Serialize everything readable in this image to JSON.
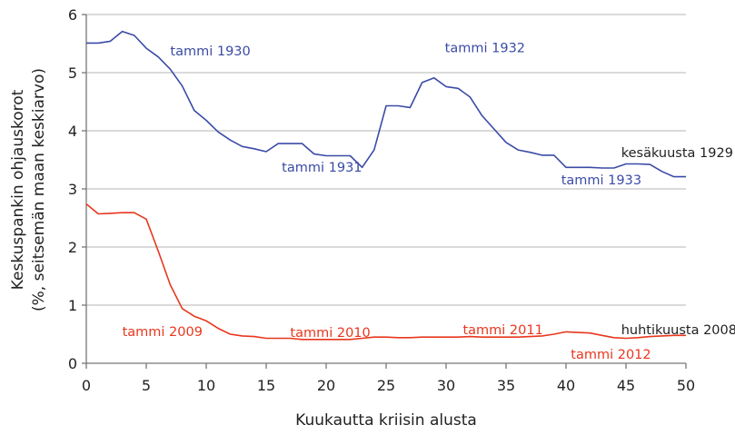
{
  "chart_data": {
    "type": "line",
    "title": "",
    "xlabel": "Kuukautta kriisin alusta",
    "ylabel_lines": [
      "Keskuspankin ohjauskorot",
      "(%, seitsemän maan keskiarvo)"
    ],
    "xlim": [
      0,
      50
    ],
    "ylim": [
      0,
      6
    ],
    "xticks": [
      0,
      5,
      10,
      15,
      20,
      25,
      30,
      35,
      40,
      45,
      50
    ],
    "yticks": [
      0,
      1,
      2,
      3,
      4,
      5,
      6
    ],
    "grid": "horizontal",
    "series": [
      {
        "name": "kesäkuusta 1929",
        "color": "#3b4ba6",
        "x": [
          0,
          1,
          2,
          3,
          4,
          5,
          6,
          7,
          8,
          9,
          10,
          11,
          12,
          13,
          14,
          15,
          16,
          17,
          18,
          19,
          20,
          21,
          22,
          23,
          24,
          25,
          26,
          27,
          28,
          29,
          30,
          31,
          32,
          33,
          34,
          35,
          36,
          37,
          38,
          39,
          40,
          41,
          42,
          43,
          44,
          45,
          46,
          47,
          48,
          49,
          50
        ],
        "values": [
          5.51,
          5.51,
          5.54,
          5.71,
          5.64,
          5.42,
          5.27,
          5.06,
          4.77,
          4.35,
          4.18,
          3.98,
          3.84,
          3.73,
          3.69,
          3.64,
          3.78,
          3.78,
          3.78,
          3.6,
          3.57,
          3.57,
          3.57,
          3.37,
          3.67,
          4.43,
          4.43,
          4.4,
          4.83,
          4.91,
          4.76,
          4.73,
          4.58,
          4.26,
          4.03,
          3.8,
          3.67,
          3.63,
          3.58,
          3.58,
          3.37,
          3.37,
          3.37,
          3.36,
          3.36,
          3.43,
          3.43,
          3.42,
          3.3,
          3.21,
          3.21
        ]
      },
      {
        "name": "huhtikuusta 2008",
        "color": "#e8371e",
        "x": [
          0,
          1,
          2,
          3,
          4,
          5,
          6,
          7,
          8,
          9,
          10,
          11,
          12,
          13,
          14,
          15,
          16,
          17,
          18,
          19,
          20,
          21,
          22,
          23,
          24,
          25,
          26,
          27,
          28,
          29,
          30,
          31,
          32,
          33,
          34,
          35,
          36,
          37,
          38,
          39,
          40,
          41,
          42,
          43,
          44,
          45,
          46,
          47,
          48,
          49,
          50
        ],
        "values": [
          2.74,
          2.57,
          2.58,
          2.59,
          2.59,
          2.48,
          1.93,
          1.35,
          0.94,
          0.81,
          0.73,
          0.6,
          0.5,
          0.47,
          0.46,
          0.43,
          0.43,
          0.43,
          0.41,
          0.41,
          0.41,
          0.41,
          0.41,
          0.43,
          0.45,
          0.45,
          0.44,
          0.44,
          0.45,
          0.45,
          0.45,
          0.45,
          0.46,
          0.45,
          0.45,
          0.45,
          0.45,
          0.46,
          0.47,
          0.5,
          0.54,
          0.53,
          0.52,
          0.48,
          0.44,
          0.43,
          0.44,
          0.46,
          0.47,
          0.48,
          0.48
        ]
      }
    ],
    "annotations": [
      {
        "text": "tammi 1930",
        "x": 7,
        "y": 5.3,
        "color": "#3b4ba6"
      },
      {
        "text": "tammi 1931",
        "x": 16.3,
        "y": 3.3,
        "color": "#3b4ba6"
      },
      {
        "text": "tammi 1932",
        "x": 29.9,
        "y": 5.35,
        "color": "#3b4ba6"
      },
      {
        "text": "tammi 1933",
        "x": 39.6,
        "y": 3.08,
        "color": "#3b4ba6"
      },
      {
        "text": "kesäkuusta 1929",
        "x": 44.6,
        "y": 3.55,
        "color": "#222222"
      },
      {
        "text": "tammi 2009",
        "x": 3,
        "y": 0.47,
        "color": "#e8371e"
      },
      {
        "text": "tammi 2010",
        "x": 17,
        "y": 0.45,
        "color": "#e8371e"
      },
      {
        "text": "tammi 2011",
        "x": 31.4,
        "y": 0.5,
        "color": "#e8371e"
      },
      {
        "text": "tammi 2012",
        "x": 40.4,
        "y": 0.08,
        "color": "#e8371e"
      },
      {
        "text": "huhtikuusta 2008",
        "x": 44.6,
        "y": 0.5,
        "color": "#222222"
      }
    ]
  }
}
